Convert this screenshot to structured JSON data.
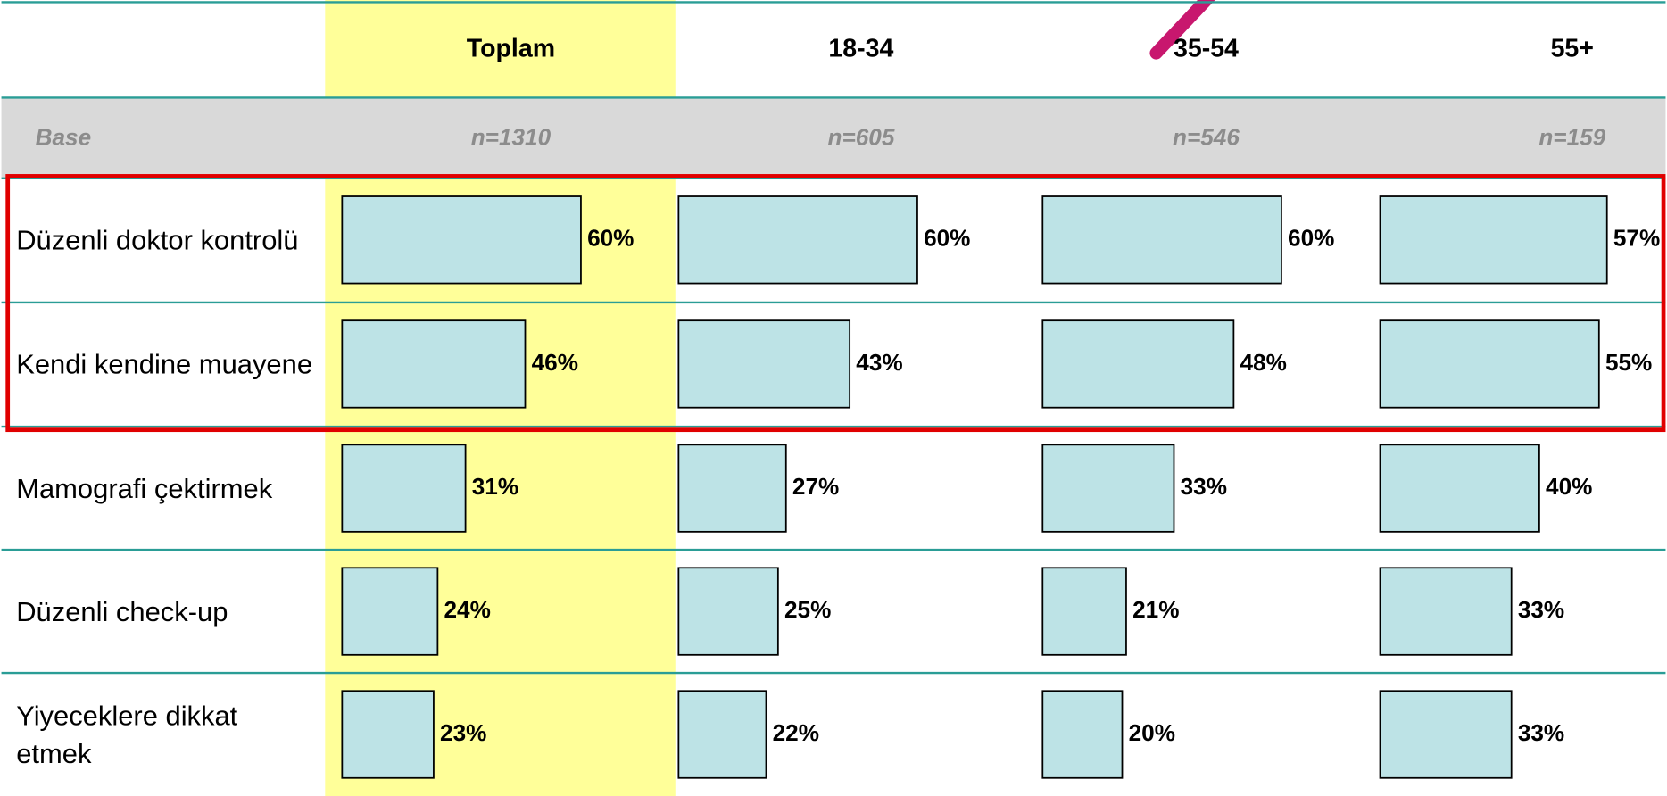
{
  "chart_data": {
    "type": "bar",
    "base_label": "Base",
    "categories": [
      "Düzenli doktor kontrolü",
      "Kendi kendine muayene",
      "Mamografi çektirmek",
      "Düzenli check-up",
      "Yiyeceklere dikkat etmek"
    ],
    "series": [
      {
        "name": "Toplam",
        "base": "n=1310",
        "values": [
          60,
          46,
          31,
          24,
          23
        ],
        "value_labels": [
          "60%",
          "46%",
          "31%",
          "24%",
          "23%"
        ]
      },
      {
        "name": "18-34",
        "base": "n=605",
        "values": [
          60,
          43,
          27,
          25,
          22
        ],
        "value_labels": [
          "60%",
          "43%",
          "27%",
          "25%",
          "22%"
        ]
      },
      {
        "name": "35-54",
        "base": "n=546",
        "values": [
          60,
          48,
          33,
          21,
          20
        ],
        "value_labels": [
          "60%",
          "48%",
          "33%",
          "21%",
          "20%"
        ]
      },
      {
        "name": "55+",
        "base": "n=159",
        "values": [
          57,
          55,
          40,
          33,
          33
        ],
        "value_labels": [
          "57%",
          "55%",
          "40%",
          "33%",
          "33%"
        ]
      }
    ],
    "color": "#bde3e6",
    "xlim": [
      0,
      80
    ]
  }
}
